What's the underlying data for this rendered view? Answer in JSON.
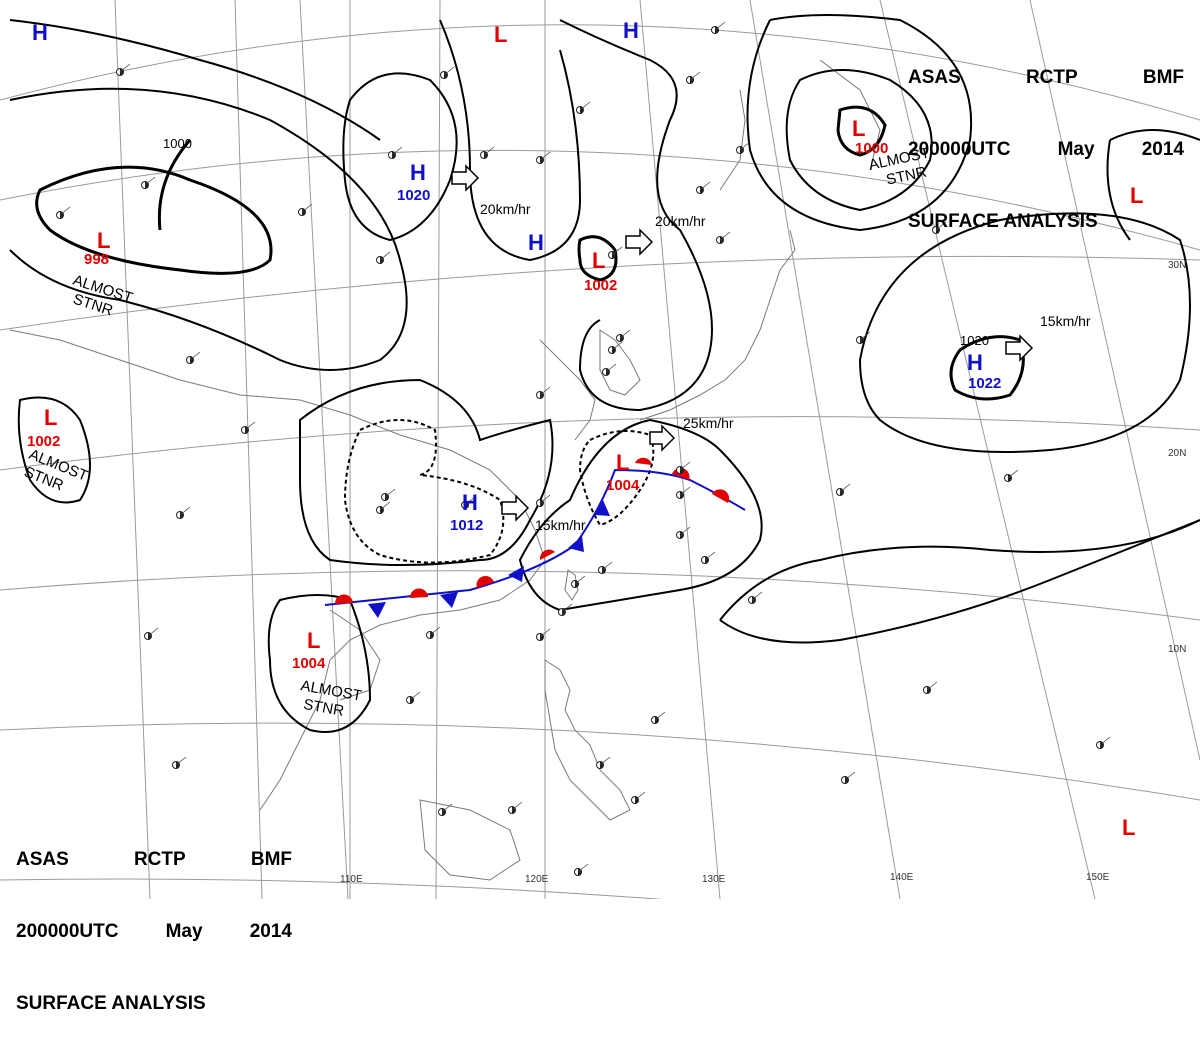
{
  "header": {
    "line1": [
      "ASAS",
      "RCTP",
      "BMF"
    ],
    "line2": [
      "200000UTC",
      "May",
      "2014"
    ],
    "line3": "SURFACE ANALYSIS"
  },
  "colors": {
    "high": "#1010c8",
    "low": "#e00000",
    "warm_front": "#e00000",
    "cold_front": "#1010c8",
    "isobar": "#000000",
    "grid": "#9a9a9a",
    "coast": "#7a7a7a"
  },
  "longitude_labels": [
    "110E",
    "120E",
    "130E",
    "140E",
    "150E"
  ],
  "latitude_labels": [
    "30N",
    "20N",
    "10N"
  ],
  "pressure_centers": [
    {
      "type": "H",
      "value": ""
    },
    {
      "type": "H",
      "value": "1020"
    },
    {
      "type": "H",
      "value": ""
    },
    {
      "type": "H",
      "value": ""
    },
    {
      "type": "H",
      "value": "1022"
    },
    {
      "type": "H",
      "value": "1012"
    },
    {
      "type": "L",
      "value": ""
    },
    {
      "type": "L",
      "value": "998"
    },
    {
      "type": "L",
      "value": "1002"
    },
    {
      "type": "L",
      "value": "1000"
    },
    {
      "type": "L",
      "value": "1002"
    },
    {
      "type": "L",
      "value": "1004"
    },
    {
      "type": "L",
      "value": "1004"
    },
    {
      "type": "L",
      "value": ""
    },
    {
      "type": "L",
      "value": ""
    }
  ],
  "isobar_labels": [
    "1000",
    "1020"
  ],
  "annotations": [
    "ALMOST",
    "STNR"
  ],
  "movements": [
    "20km/hr",
    "20km/hr",
    "15km/hr",
    "25km/hr",
    "15km/hr"
  ]
}
